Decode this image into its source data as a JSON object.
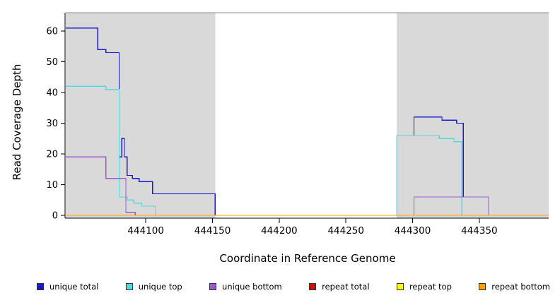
{
  "chart_data": {
    "type": "line",
    "subtype": "step",
    "title": "",
    "xlabel": "Coordinate in Reference Genome",
    "ylabel": "Read Coverage Depth",
    "x_range": [
      444040,
      444402
    ],
    "y_range": [
      0,
      66
    ],
    "x_ticks": [
      444100,
      444150,
      444200,
      444250,
      444300,
      444350
    ],
    "y_ticks": [
      0,
      10,
      20,
      30,
      40,
      50,
      60
    ],
    "grid": false,
    "legend_position": "bottom",
    "shade_color": "#d9d9d9",
    "shaded_regions": [
      [
        444040,
        444152
      ],
      [
        444288,
        444402
      ]
    ],
    "series": [
      {
        "name": "unique total",
        "color": "#1a1acd",
        "steps": [
          [
            444040,
            61
          ],
          [
            444064,
            54
          ],
          [
            444070,
            53
          ],
          [
            444080,
            19
          ],
          [
            444082,
            25
          ],
          [
            444084,
            19
          ],
          [
            444086,
            13
          ],
          [
            444090,
            12
          ],
          [
            444095,
            11
          ],
          [
            444105,
            7
          ],
          [
            444152,
            0
          ],
          [
            444288,
            26
          ],
          [
            444301,
            32
          ],
          [
            444322,
            31
          ],
          [
            444333,
            30
          ],
          [
            444338,
            6
          ],
          [
            444357,
            0
          ]
        ]
      },
      {
        "name": "unique top",
        "color": "#55d8e0",
        "steps": [
          [
            444040,
            42
          ],
          [
            444070,
            41
          ],
          [
            444080,
            6
          ],
          [
            444086,
            5
          ],
          [
            444091,
            4
          ],
          [
            444097,
            3
          ],
          [
            444107,
            0
          ],
          [
            444288,
            26
          ],
          [
            444320,
            25
          ],
          [
            444331,
            24
          ],
          [
            444337,
            0
          ]
        ]
      },
      {
        "name": "unique bottom",
        "color": "#9b59d0",
        "steps": [
          [
            444040,
            19
          ],
          [
            444070,
            12
          ],
          [
            444085,
            1
          ],
          [
            444092,
            0
          ],
          [
            444301,
            6
          ],
          [
            444357,
            0
          ]
        ]
      },
      {
        "name": "repeat total",
        "color": "#cc1111",
        "steps": [
          [
            444040,
            0
          ]
        ]
      },
      {
        "name": "repeat top",
        "color": "#ffff00",
        "steps": [
          [
            444040,
            0
          ]
        ]
      },
      {
        "name": "repeat bottom",
        "color": "#ffa200",
        "steps": [
          [
            444040,
            0
          ]
        ]
      }
    ]
  }
}
